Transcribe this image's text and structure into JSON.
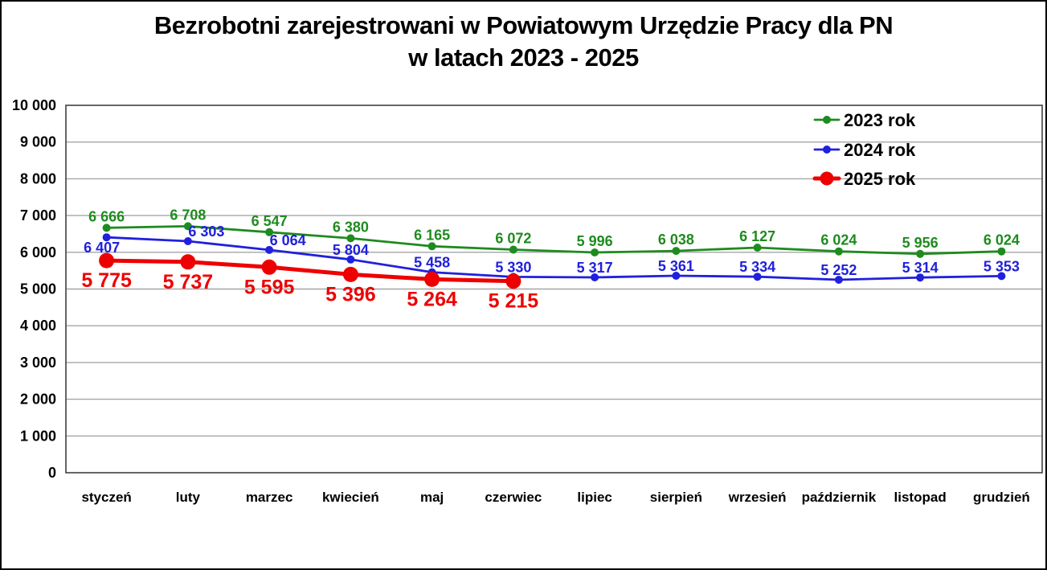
{
  "window": {
    "background": "#FFFFFF",
    "frame_border_color": "#000000"
  },
  "chart_data": {
    "type": "line",
    "title": "Bezrobotni zarejestrowani w Powiatowym Urzędzie Pracy dla PN w latach 2023 - 2025",
    "title_lines": [
      "Bezrobotni zarejestrowani w Powiatowym Urzędzie Pracy dla PN",
      "w latach 2023 - 2025"
    ],
    "categories": [
      "styczeń",
      "luty",
      "marzec",
      "kwiecień",
      "maj",
      "czerwiec",
      "lipiec",
      "sierpień",
      "wrzesień",
      "październik",
      "listopad",
      "grudzień"
    ],
    "xlabel": "",
    "ylabel": "",
    "ylim": [
      0,
      10000
    ],
    "ytick_step": 1000,
    "ytick_labels": [
      "0",
      "1 000",
      "2 000",
      "3 000",
      "4 000",
      "5 000",
      "6 000",
      "7 000",
      "8 000",
      "9 000",
      "10 000"
    ],
    "grid": "horizontal",
    "grid_color": "#A6A6A6",
    "axis_border_color": "#404040",
    "text_color": "#000000",
    "legend_position": "top-right",
    "series": [
      {
        "name": "2023 rok",
        "color": "#1E8B1E",
        "thick": false,
        "values": [
          6666,
          6708,
          6547,
          6380,
          6165,
          6072,
          5996,
          6038,
          6127,
          6024,
          5956,
          6024
        ],
        "labels": [
          "6 666",
          "6 708",
          "6 547",
          "6 380",
          "6 165",
          "6 072",
          "5 996",
          "6 038",
          "6 127",
          "6 024",
          "5 956",
          "6 024"
        ]
      },
      {
        "name": "2024 rok",
        "color": "#2020DD",
        "thick": false,
        "values": [
          6407,
          6303,
          6064,
          5804,
          5458,
          5330,
          5317,
          5361,
          5334,
          5252,
          5314,
          5353
        ],
        "labels": [
          "6 407",
          "6 303",
          "6 064",
          "5 804",
          "5 458",
          "5 330",
          "5 317",
          "5 361",
          "5 334",
          "5 252",
          "5 314",
          "5 353"
        ]
      },
      {
        "name": "2025 rok",
        "color": "#EE0000",
        "thick": true,
        "values": [
          5775,
          5737,
          5595,
          5396,
          5264,
          5215
        ],
        "labels": [
          "5 775",
          "5 737",
          "5 595",
          "5 396",
          "5 264",
          "5 215"
        ]
      }
    ]
  }
}
